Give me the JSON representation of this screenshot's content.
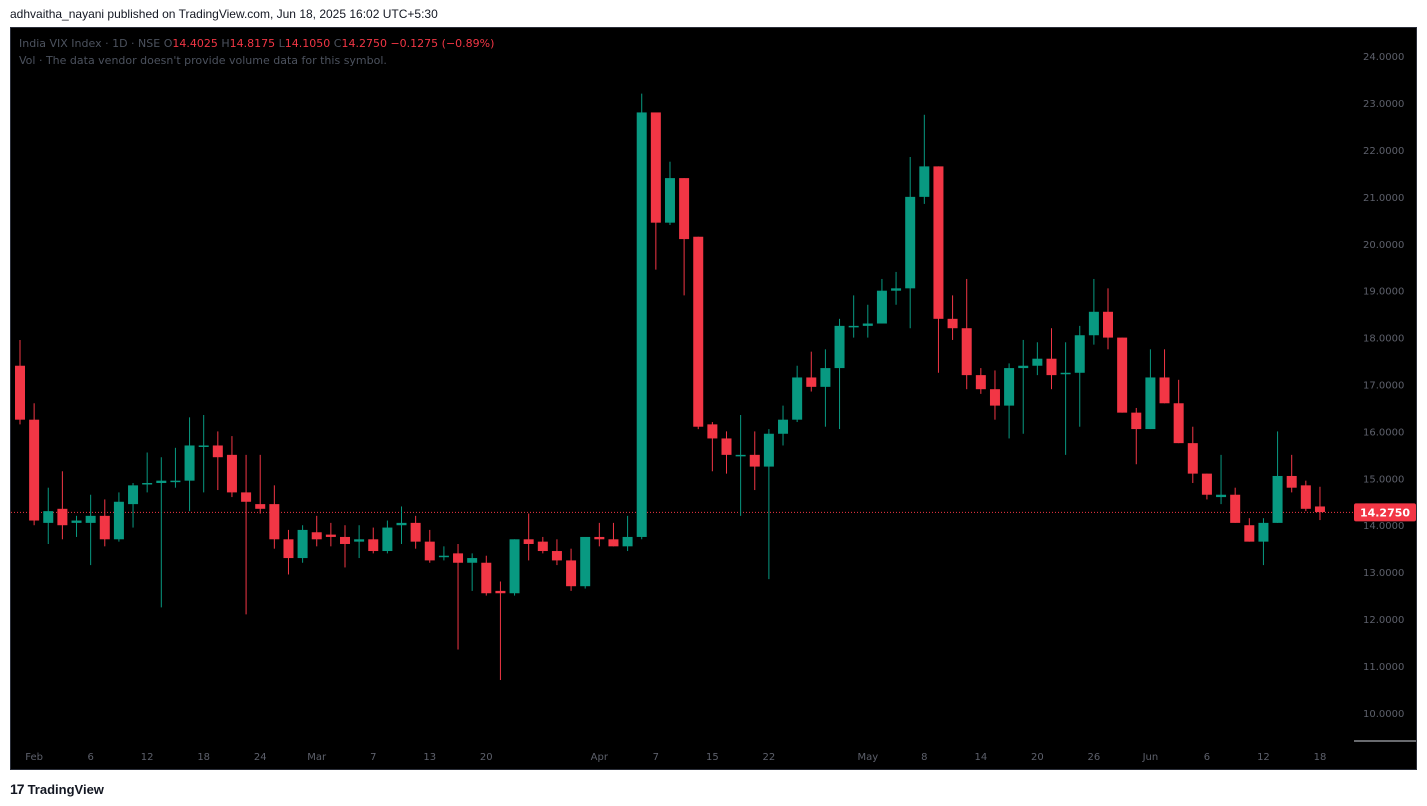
{
  "header": {
    "publish_line": "adhvaitha_nayani published on TradingView.com, Jun 18, 2025 16:02 UTC+5:30"
  },
  "legend": {
    "symbol": "India VIX Index · 1D · NSE",
    "o_label": "O",
    "o_value": "14.4025",
    "h_label": "H",
    "h_value": "14.8175",
    "l_label": "L",
    "l_value": "14.1050",
    "c_label": "C",
    "c_value": "14.2750",
    "change": "−0.1275 (−0.89%)",
    "volume_note": "Vol · The data vendor doesn't provide volume data for this symbol."
  },
  "footer": {
    "logo": "17",
    "brand": "TradingView"
  },
  "colors": {
    "up": "#089981",
    "down": "#f23645",
    "background": "#000000",
    "last_price_line": "#f23645"
  },
  "chart_data": {
    "type": "candlestick",
    "ylim": [
      9.4,
      24.6
    ],
    "y_ticks": [
      "10.0000",
      "11.0000",
      "12.0000",
      "13.0000",
      "14.0000",
      "15.0000",
      "16.0000",
      "17.0000",
      "18.0000",
      "19.0000",
      "20.0000",
      "21.0000",
      "22.0000",
      "23.0000",
      "24.0000"
    ],
    "x_ticks": [
      {
        "label": "Feb",
        "index": 1
      },
      {
        "label": "6",
        "index": 5
      },
      {
        "label": "12",
        "index": 9
      },
      {
        "label": "18",
        "index": 13
      },
      {
        "label": "24",
        "index": 17
      },
      {
        "label": "Mar",
        "index": 21
      },
      {
        "label": "7",
        "index": 25
      },
      {
        "label": "13",
        "index": 29
      },
      {
        "label": "20",
        "index": 33
      },
      {
        "label": "Apr",
        "index": 41
      },
      {
        "label": "7",
        "index": 45
      },
      {
        "label": "15",
        "index": 49
      },
      {
        "label": "22",
        "index": 53
      },
      {
        "label": "May",
        "index": 60
      },
      {
        "label": "8",
        "index": 64
      },
      {
        "label": "14",
        "index": 68
      },
      {
        "label": "20",
        "index": 72
      },
      {
        "label": "26",
        "index": 76
      },
      {
        "label": "Jun",
        "index": 80
      },
      {
        "label": "6",
        "index": 84
      },
      {
        "label": "12",
        "index": 88
      },
      {
        "label": "18",
        "index": 92
      }
    ],
    "last_price": "14.2750",
    "last_price_value": 14.275,
    "candles": [
      {
        "o": 17.4,
        "h": 17.95,
        "l": 16.15,
        "c": 16.25
      },
      {
        "o": 16.25,
        "h": 16.6,
        "l": 14.0,
        "c": 14.1
      },
      {
        "o": 14.05,
        "h": 14.8,
        "l": 13.6,
        "c": 14.3
      },
      {
        "o": 14.35,
        "h": 15.15,
        "l": 13.7,
        "c": 14.0
      },
      {
        "o": 14.05,
        "h": 14.2,
        "l": 13.75,
        "c": 14.1
      },
      {
        "o": 14.05,
        "h": 14.65,
        "l": 13.15,
        "c": 14.2
      },
      {
        "o": 14.2,
        "h": 14.55,
        "l": 13.55,
        "c": 13.7
      },
      {
        "o": 13.7,
        "h": 14.7,
        "l": 13.65,
        "c": 14.5
      },
      {
        "o": 14.45,
        "h": 14.9,
        "l": 13.95,
        "c": 14.85
      },
      {
        "o": 14.9,
        "h": 15.55,
        "l": 14.7,
        "c": 14.9
      },
      {
        "o": 14.9,
        "h": 15.45,
        "l": 12.25,
        "c": 14.95
      },
      {
        "o": 14.95,
        "h": 15.65,
        "l": 14.8,
        "c": 14.95
      },
      {
        "o": 14.95,
        "h": 16.3,
        "l": 14.3,
        "c": 15.7
      },
      {
        "o": 15.7,
        "h": 16.35,
        "l": 14.7,
        "c": 15.7
      },
      {
        "o": 15.7,
        "h": 16.0,
        "l": 14.75,
        "c": 15.45
      },
      {
        "o": 15.5,
        "h": 15.9,
        "l": 14.6,
        "c": 14.7
      },
      {
        "o": 14.7,
        "h": 15.5,
        "l": 12.1,
        "c": 14.5
      },
      {
        "o": 14.45,
        "h": 15.5,
        "l": 14.25,
        "c": 14.35
      },
      {
        "o": 14.45,
        "h": 14.85,
        "l": 13.5,
        "c": 13.7
      },
      {
        "o": 13.7,
        "h": 13.9,
        "l": 12.95,
        "c": 13.3
      },
      {
        "o": 13.3,
        "h": 14.0,
        "l": 13.2,
        "c": 13.9
      },
      {
        "o": 13.85,
        "h": 14.2,
        "l": 13.55,
        "c": 13.7
      },
      {
        "o": 13.8,
        "h": 14.05,
        "l": 13.55,
        "c": 13.75
      },
      {
        "o": 13.75,
        "h": 14.0,
        "l": 13.1,
        "c": 13.6
      },
      {
        "o": 13.65,
        "h": 14.0,
        "l": 13.3,
        "c": 13.7
      },
      {
        "o": 13.7,
        "h": 13.95,
        "l": 13.4,
        "c": 13.45
      },
      {
        "o": 13.45,
        "h": 14.1,
        "l": 13.4,
        "c": 13.95
      },
      {
        "o": 14.0,
        "h": 14.4,
        "l": 13.6,
        "c": 14.05
      },
      {
        "o": 14.05,
        "h": 14.2,
        "l": 13.5,
        "c": 13.65
      },
      {
        "o": 13.65,
        "h": 13.9,
        "l": 13.2,
        "c": 13.25
      },
      {
        "o": 13.35,
        "h": 13.55,
        "l": 13.25,
        "c": 13.35
      },
      {
        "o": 13.4,
        "h": 13.6,
        "l": 11.35,
        "c": 13.2
      },
      {
        "o": 13.2,
        "h": 13.4,
        "l": 12.6,
        "c": 13.3
      },
      {
        "o": 13.2,
        "h": 13.35,
        "l": 12.5,
        "c": 12.55
      },
      {
        "o": 12.6,
        "h": 12.8,
        "l": 10.7,
        "c": 12.55
      },
      {
        "o": 12.55,
        "h": 13.7,
        "l": 12.5,
        "c": 13.7
      },
      {
        "o": 13.7,
        "h": 14.25,
        "l": 13.25,
        "c": 13.6
      },
      {
        "o": 13.65,
        "h": 13.75,
        "l": 13.4,
        "c": 13.45
      },
      {
        "o": 13.45,
        "h": 13.7,
        "l": 13.15,
        "c": 13.25
      },
      {
        "o": 13.25,
        "h": 13.5,
        "l": 12.6,
        "c": 12.7
      },
      {
        "o": 12.7,
        "h": 13.7,
        "l": 12.65,
        "c": 13.75
      },
      {
        "o": 13.75,
        "h": 14.05,
        "l": 13.55,
        "c": 13.7
      },
      {
        "o": 13.7,
        "h": 14.05,
        "l": 13.55,
        "c": 13.55
      },
      {
        "o": 13.55,
        "h": 14.2,
        "l": 13.45,
        "c": 13.75
      },
      {
        "o": 13.75,
        "h": 23.2,
        "l": 13.7,
        "c": 22.8
      },
      {
        "o": 22.8,
        "h": 22.75,
        "l": 19.45,
        "c": 20.45
      },
      {
        "o": 20.45,
        "h": 21.75,
        "l": 20.4,
        "c": 21.4
      },
      {
        "o": 21.4,
        "h": 21.4,
        "l": 18.9,
        "c": 20.1
      },
      {
        "o": 20.15,
        "h": 20.15,
        "l": 16.05,
        "c": 16.1
      },
      {
        "o": 16.15,
        "h": 16.2,
        "l": 15.15,
        "c": 15.85
      },
      {
        "o": 15.85,
        "h": 16.0,
        "l": 15.1,
        "c": 15.5
      },
      {
        "o": 15.5,
        "h": 16.35,
        "l": 14.2,
        "c": 15.5
      },
      {
        "o": 15.5,
        "h": 16.0,
        "l": 14.75,
        "c": 15.25
      },
      {
        "o": 15.25,
        "h": 16.05,
        "l": 12.85,
        "c": 15.95
      },
      {
        "o": 15.95,
        "h": 16.55,
        "l": 15.7,
        "c": 16.25
      },
      {
        "o": 16.25,
        "h": 17.4,
        "l": 16.2,
        "c": 17.15
      },
      {
        "o": 17.15,
        "h": 17.7,
        "l": 16.85,
        "c": 16.95
      },
      {
        "o": 16.95,
        "h": 17.75,
        "l": 16.1,
        "c": 17.35
      },
      {
        "o": 17.35,
        "h": 18.4,
        "l": 16.05,
        "c": 18.25
      },
      {
        "o": 18.25,
        "h": 18.9,
        "l": 18.0,
        "c": 18.25
      },
      {
        "o": 18.25,
        "h": 18.7,
        "l": 18.0,
        "c": 18.3
      },
      {
        "o": 18.3,
        "h": 19.25,
        "l": 18.3,
        "c": 19.0
      },
      {
        "o": 19.0,
        "h": 19.4,
        "l": 18.7,
        "c": 19.05
      },
      {
        "o": 19.05,
        "h": 21.85,
        "l": 18.2,
        "c": 21.0
      },
      {
        "o": 21.0,
        "h": 22.75,
        "l": 20.85,
        "c": 21.65
      },
      {
        "o": 21.65,
        "h": 21.65,
        "l": 17.25,
        "c": 18.4
      },
      {
        "o": 18.4,
        "h": 18.9,
        "l": 17.95,
        "c": 18.2
      },
      {
        "o": 18.2,
        "h": 19.25,
        "l": 16.9,
        "c": 17.2
      },
      {
        "o": 17.2,
        "h": 17.35,
        "l": 16.8,
        "c": 16.9
      },
      {
        "o": 16.9,
        "h": 17.3,
        "l": 16.25,
        "c": 16.55
      },
      {
        "o": 16.55,
        "h": 17.45,
        "l": 15.85,
        "c": 17.35
      },
      {
        "o": 17.35,
        "h": 17.95,
        "l": 15.95,
        "c": 17.4
      },
      {
        "o": 17.4,
        "h": 17.9,
        "l": 17.2,
        "c": 17.55
      },
      {
        "o": 17.55,
        "h": 18.2,
        "l": 16.9,
        "c": 17.2
      },
      {
        "o": 17.25,
        "h": 17.9,
        "l": 15.5,
        "c": 17.25
      },
      {
        "o": 17.25,
        "h": 18.25,
        "l": 16.1,
        "c": 18.05
      },
      {
        "o": 18.05,
        "h": 19.25,
        "l": 17.85,
        "c": 18.55
      },
      {
        "o": 18.55,
        "h": 19.05,
        "l": 17.75,
        "c": 18.0
      },
      {
        "o": 18.0,
        "h": 18.0,
        "l": 16.4,
        "c": 16.4
      },
      {
        "o": 16.4,
        "h": 16.5,
        "l": 15.3,
        "c": 16.05
      },
      {
        "o": 16.05,
        "h": 17.75,
        "l": 16.05,
        "c": 17.15
      },
      {
        "o": 17.15,
        "h": 17.75,
        "l": 16.6,
        "c": 16.6
      },
      {
        "o": 16.6,
        "h": 17.1,
        "l": 15.75,
        "c": 15.75
      },
      {
        "o": 15.75,
        "h": 16.1,
        "l": 14.9,
        "c": 15.1
      },
      {
        "o": 15.1,
        "h": 15.1,
        "l": 14.55,
        "c": 14.65
      },
      {
        "o": 14.6,
        "h": 15.5,
        "l": 14.45,
        "c": 14.65
      },
      {
        "o": 14.65,
        "h": 14.8,
        "l": 14.05,
        "c": 14.05
      },
      {
        "o": 14.0,
        "h": 14.15,
        "l": 13.65,
        "c": 13.65
      },
      {
        "o": 13.65,
        "h": 14.15,
        "l": 13.15,
        "c": 14.05
      },
      {
        "o": 14.05,
        "h": 16.0,
        "l": 14.05,
        "c": 15.05
      },
      {
        "o": 15.05,
        "h": 15.5,
        "l": 14.7,
        "c": 14.8
      },
      {
        "o": 14.85,
        "h": 14.95,
        "l": 14.3,
        "c": 14.35
      },
      {
        "o": 14.4,
        "h": 14.82,
        "l": 14.11,
        "c": 14.28
      }
    ]
  }
}
